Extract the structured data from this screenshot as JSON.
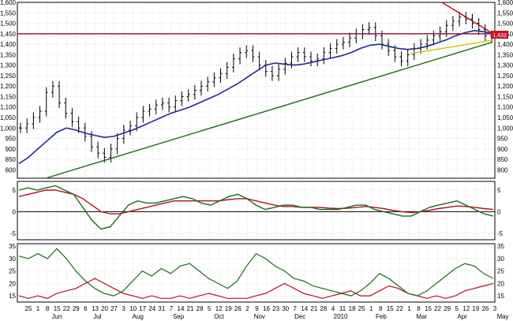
{
  "chart_data": {
    "type": "candlestick-with-indicators",
    "panels": [
      {
        "name": "price",
        "yticks": [
          800,
          850,
          900,
          950,
          1000,
          1050,
          1100,
          1150,
          1200,
          1250,
          1300,
          1350,
          1400,
          1450,
          1500,
          1550,
          1600
        ],
        "ylabels": [
          "800",
          "850",
          "900",
          "950",
          "1,000",
          "1,050",
          "1,100",
          "1,150",
          "1,200",
          "1,250",
          "1,300",
          "1,350",
          "1,400",
          "1,450",
          "1,500",
          "1,550",
          "1,600"
        ],
        "ylim": [
          760,
          1600
        ],
        "close_series_approx": [
          1000,
          1020,
          1050,
          1080,
          1170,
          1200,
          1120,
          1070,
          1030,
          1000,
          960,
          910,
          880,
          860,
          900,
          950,
          990,
          1010,
          1050,
          1080,
          1090,
          1110,
          1120,
          1100,
          1130,
          1150,
          1160,
          1180,
          1200,
          1220,
          1240,
          1260,
          1290,
          1330,
          1360,
          1370,
          1340,
          1300,
          1270,
          1250,
          1280,
          1310,
          1340,
          1360,
          1340,
          1320,
          1330,
          1360,
          1380,
          1400,
          1410,
          1430,
          1450,
          1470,
          1480,
          1440,
          1400,
          1370,
          1340,
          1320,
          1350,
          1380,
          1400,
          1420,
          1440,
          1460,
          1490,
          1510,
          1530,
          1520,
          1500,
          1470,
          1440,
          1430
        ],
        "moving_average_approx": [
          830,
          860,
          900,
          940,
          980,
          1000,
          990,
          975,
          965,
          955,
          960,
          975,
          990,
          1010,
          1030,
          1050,
          1070,
          1085,
          1100,
          1120,
          1140,
          1160,
          1185,
          1210,
          1240,
          1270,
          1300,
          1310,
          1305,
          1300,
          1305,
          1315,
          1325,
          1335,
          1345,
          1360,
          1380,
          1395,
          1400,
          1390,
          1380,
          1375,
          1380,
          1390,
          1405,
          1420,
          1440,
          1455,
          1465,
          1460,
          1450
        ],
        "horizontal_line_value": 1450,
        "last_price_label": "1,433",
        "trendlines": [
          {
            "color": "green",
            "from": 760,
            "to": 1410
          },
          {
            "color": "yellow",
            "from": 1355,
            "to": 1420
          },
          {
            "color": "red",
            "from": 1600,
            "to": 1445
          }
        ]
      },
      {
        "name": "macd",
        "yticks": [
          -5,
          0,
          5
        ],
        "ylabels": [
          "-5",
          "0",
          "5"
        ],
        "ylim": [
          -6.5,
          7
        ],
        "green_series_approx": [
          5,
          5.5,
          5,
          5.5,
          6,
          5,
          4,
          1,
          -2,
          -4,
          -3.5,
          -1,
          1.5,
          2.5,
          2,
          2,
          2.5,
          3,
          3.5,
          3,
          2,
          1.5,
          2.5,
          3.5,
          4,
          3,
          1.5,
          0.5,
          1,
          1.5,
          1.5,
          1,
          1,
          0.5,
          0.5,
          0.5,
          1,
          1.5,
          1.5,
          0.5,
          0,
          -0.5,
          -1,
          -1,
          0,
          1,
          1.5,
          2,
          2.5,
          1.5,
          0.5,
          -0.5,
          -1
        ],
        "red_series_approx": [
          3.5,
          4,
          4.5,
          5,
          5,
          4.5,
          4,
          3,
          1.5,
          0,
          -0.5,
          -0.5,
          0,
          0.5,
          1,
          1.5,
          2,
          2.5,
          2.5,
          2.5,
          2.5,
          2.5,
          2.5,
          2.8,
          3,
          3,
          2.5,
          2,
          1.5,
          1.2,
          1.2,
          1,
          1,
          1,
          0.8,
          0.7,
          0.8,
          1,
          1.2,
          1,
          0.7,
          0.3,
          0,
          -0.2,
          0,
          0.3,
          0.7,
          1,
          1.3,
          1.2,
          1,
          0.7,
          0.5
        ]
      },
      {
        "name": "dmi",
        "yticks": [
          15,
          20,
          25,
          30,
          35
        ],
        "ylabels": [
          "15",
          "20",
          "25",
          "30",
          "35"
        ],
        "ylim": [
          12.5,
          36
        ],
        "green_series_approx": [
          31,
          30,
          32,
          30,
          34,
          30,
          25,
          21,
          18,
          16,
          15,
          17,
          21,
          25,
          23,
          26,
          24,
          27,
          28,
          25,
          22,
          20,
          18,
          21,
          27,
          32,
          30,
          27,
          25,
          22,
          21,
          19,
          18,
          17,
          16,
          15,
          17,
          20,
          24,
          22,
          19,
          16,
          15,
          17,
          20,
          23,
          26,
          28,
          27,
          24,
          22
        ],
        "red_series_approx": [
          15,
          14,
          15,
          14,
          16,
          17,
          18,
          20,
          22,
          20,
          18,
          16,
          15,
          14,
          15,
          14,
          14,
          15,
          14,
          15,
          16,
          15,
          14,
          14,
          14,
          15,
          16,
          18,
          20,
          18,
          16,
          15,
          14,
          15,
          16,
          17,
          15,
          15,
          17,
          19,
          18,
          16,
          15,
          14,
          15,
          14,
          15,
          17,
          18,
          19,
          20
        ]
      }
    ],
    "x_day_labels": [
      "25",
      "1",
      "8",
      "15",
      "22",
      "29",
      "6",
      "13",
      "20",
      "27",
      "3",
      "10",
      "17",
      "24",
      "31",
      "7",
      "14",
      "21",
      "28",
      "5",
      "12",
      "19",
      "26",
      "2",
      "9",
      "16",
      "23",
      "30",
      "7",
      "14",
      "21",
      "28",
      "4",
      "11",
      "18",
      "25",
      "1",
      "8",
      "15",
      "22",
      "1",
      "8",
      "15",
      "22",
      "29",
      "5",
      "12",
      "19",
      "26",
      "3"
    ],
    "x_month_labels": [
      "Jun",
      "Jul",
      "Aug",
      "Sep",
      "Oct",
      "Nov",
      "Dec",
      "2010",
      "Feb",
      "Mar",
      "Apr",
      "May"
    ],
    "colors": {
      "candle": "#000000",
      "moving_average": "#1f2a8a",
      "green_line": "#1a6b1a",
      "red_line": "#b01020",
      "yellow_line": "#c8c800",
      "resistance": "#8b0a3a",
      "price_label_bg": "#c8101e"
    }
  }
}
